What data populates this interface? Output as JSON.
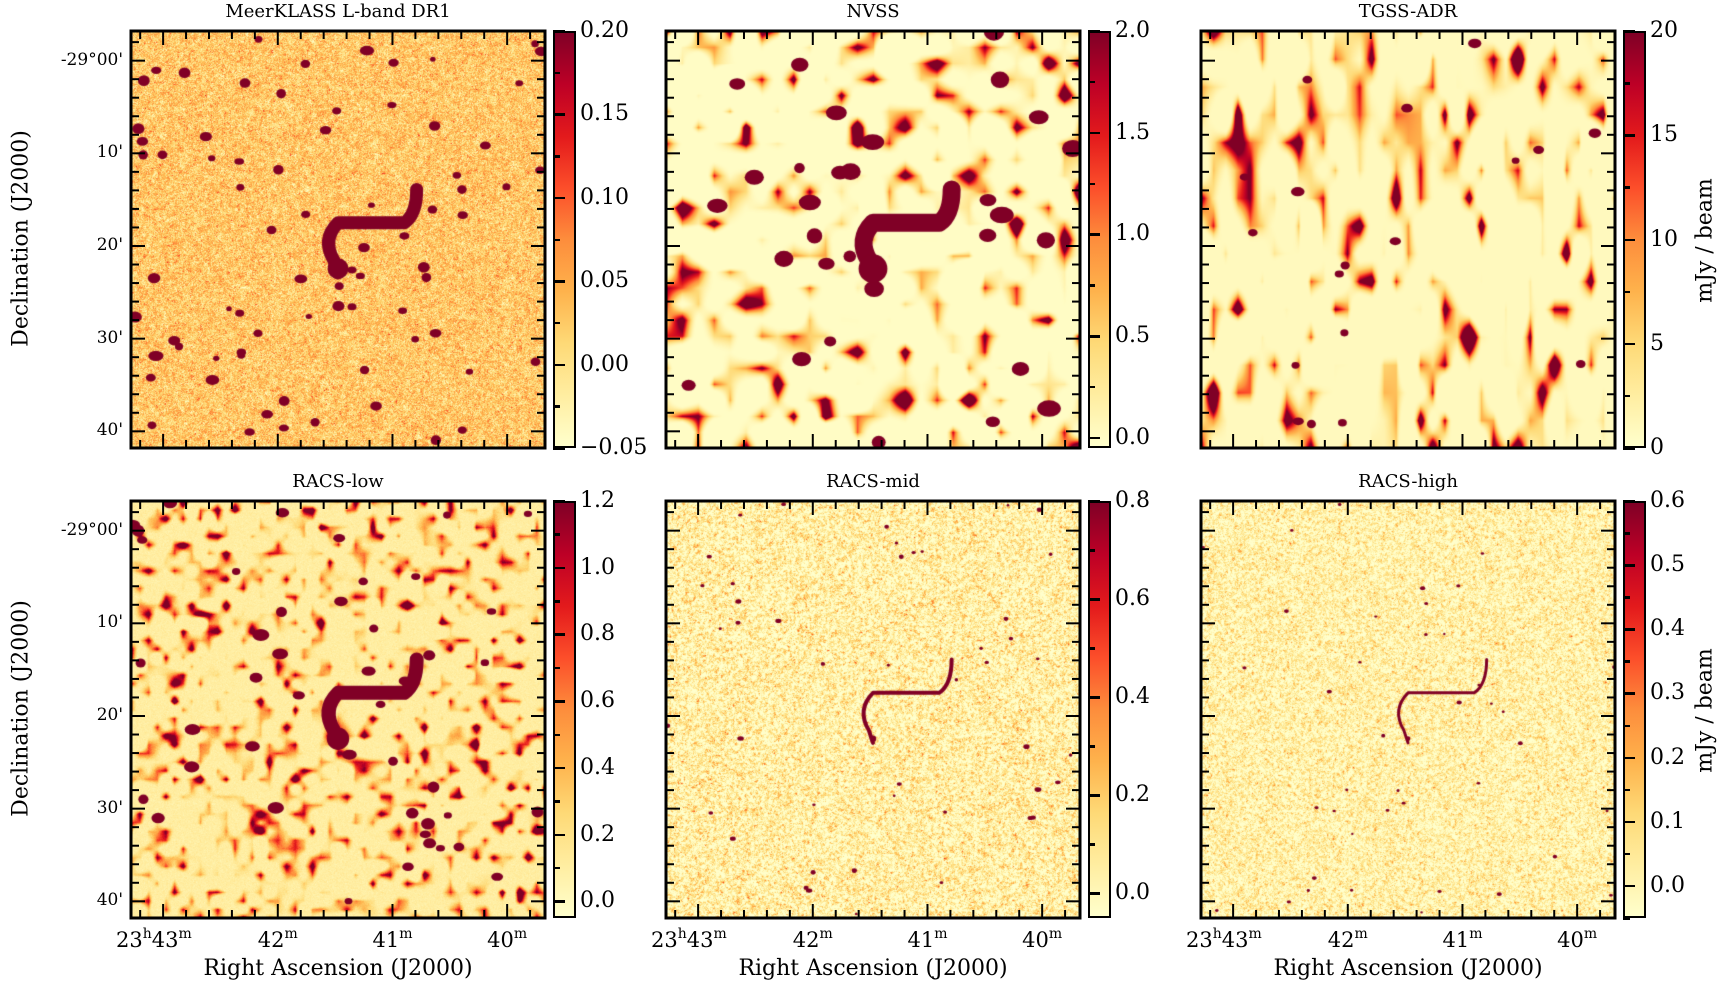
{
  "chart_data": {
    "type": "heatmap",
    "layout": "2x3 grid",
    "xlabel": "Right Ascension (J2000)",
    "ylabel": "Declination (J2000)",
    "colorbar_label": "mJy / beam",
    "colormap": [
      "#ffffcc",
      "#ffeda0",
      "#fed976",
      "#feb24c",
      "#fd8d3c",
      "#fc4e2a",
      "#e31a1c",
      "#bd0026",
      "#800026"
    ],
    "ra_range_min": [
      43.28,
      39.67
    ],
    "ra_ticks": [
      {
        "value": 43,
        "label": "23",
        "sup1": "h",
        "label2": "43",
        "sup2": "m"
      },
      {
        "value": 42,
        "label": "42",
        "sup1": "m"
      },
      {
        "value": 41,
        "label": "41",
        "sup1": "m"
      },
      {
        "value": 40,
        "label": "40",
        "sup1": "m"
      }
    ],
    "dec_range_arcmin": [
      -3.2,
      41.8
    ],
    "dec_ticks": [
      {
        "value": 0,
        "label": "-29°00'"
      },
      {
        "value": 10,
        "label": "10'"
      },
      {
        "value": 20,
        "label": "20'"
      },
      {
        "value": 30,
        "label": "30'"
      },
      {
        "value": 40,
        "label": "40'"
      }
    ],
    "panels": [
      {
        "title": "MeerKLASS L-band DR1",
        "vmin": -0.05,
        "vmax": 0.2,
        "ticks": [
          -0.05,
          0.0,
          0.05,
          0.1,
          0.15,
          0.2
        ],
        "tick_labels": [
          "−0.05",
          "0.00",
          "0.05",
          "0.10",
          "0.15",
          "0.20"
        ]
      },
      {
        "title": "NVSS",
        "vmin": -0.05,
        "vmax": 2.0,
        "ticks": [
          0.0,
          0.5,
          1.0,
          1.5,
          2.0
        ],
        "tick_labels": [
          "0.0",
          "0.5",
          "1.0",
          "1.5",
          "2.0"
        ]
      },
      {
        "title": "TGSS-ADR",
        "vmin": 0,
        "vmax": 20,
        "ticks": [
          0,
          5,
          10,
          15,
          20
        ],
        "tick_labels": [
          "0",
          "5",
          "10",
          "15",
          "20"
        ]
      },
      {
        "title": "RACS-low",
        "vmin": -0.05,
        "vmax": 1.2,
        "ticks": [
          0.0,
          0.2,
          0.4,
          0.6,
          0.8,
          1.0,
          1.2
        ],
        "tick_labels": [
          "0.0",
          "0.2",
          "0.4",
          "0.6",
          "0.8",
          "1.0",
          "1.2"
        ]
      },
      {
        "title": "RACS-mid",
        "vmin": -0.05,
        "vmax": 0.8,
        "ticks": [
          0.0,
          0.2,
          0.4,
          0.6,
          0.8
        ],
        "tick_labels": [
          "0.0",
          "0.2",
          "0.4",
          "0.6",
          "0.8"
        ]
      },
      {
        "title": "RACS-high",
        "vmin": -0.05,
        "vmax": 0.6,
        "ticks": [
          0.0,
          0.1,
          0.2,
          0.3,
          0.4,
          0.5,
          0.6
        ],
        "tick_labels": [
          "0.0",
          "0.1",
          "0.2",
          "0.3",
          "0.4",
          "0.5",
          "0.6"
        ]
      }
    ]
  }
}
